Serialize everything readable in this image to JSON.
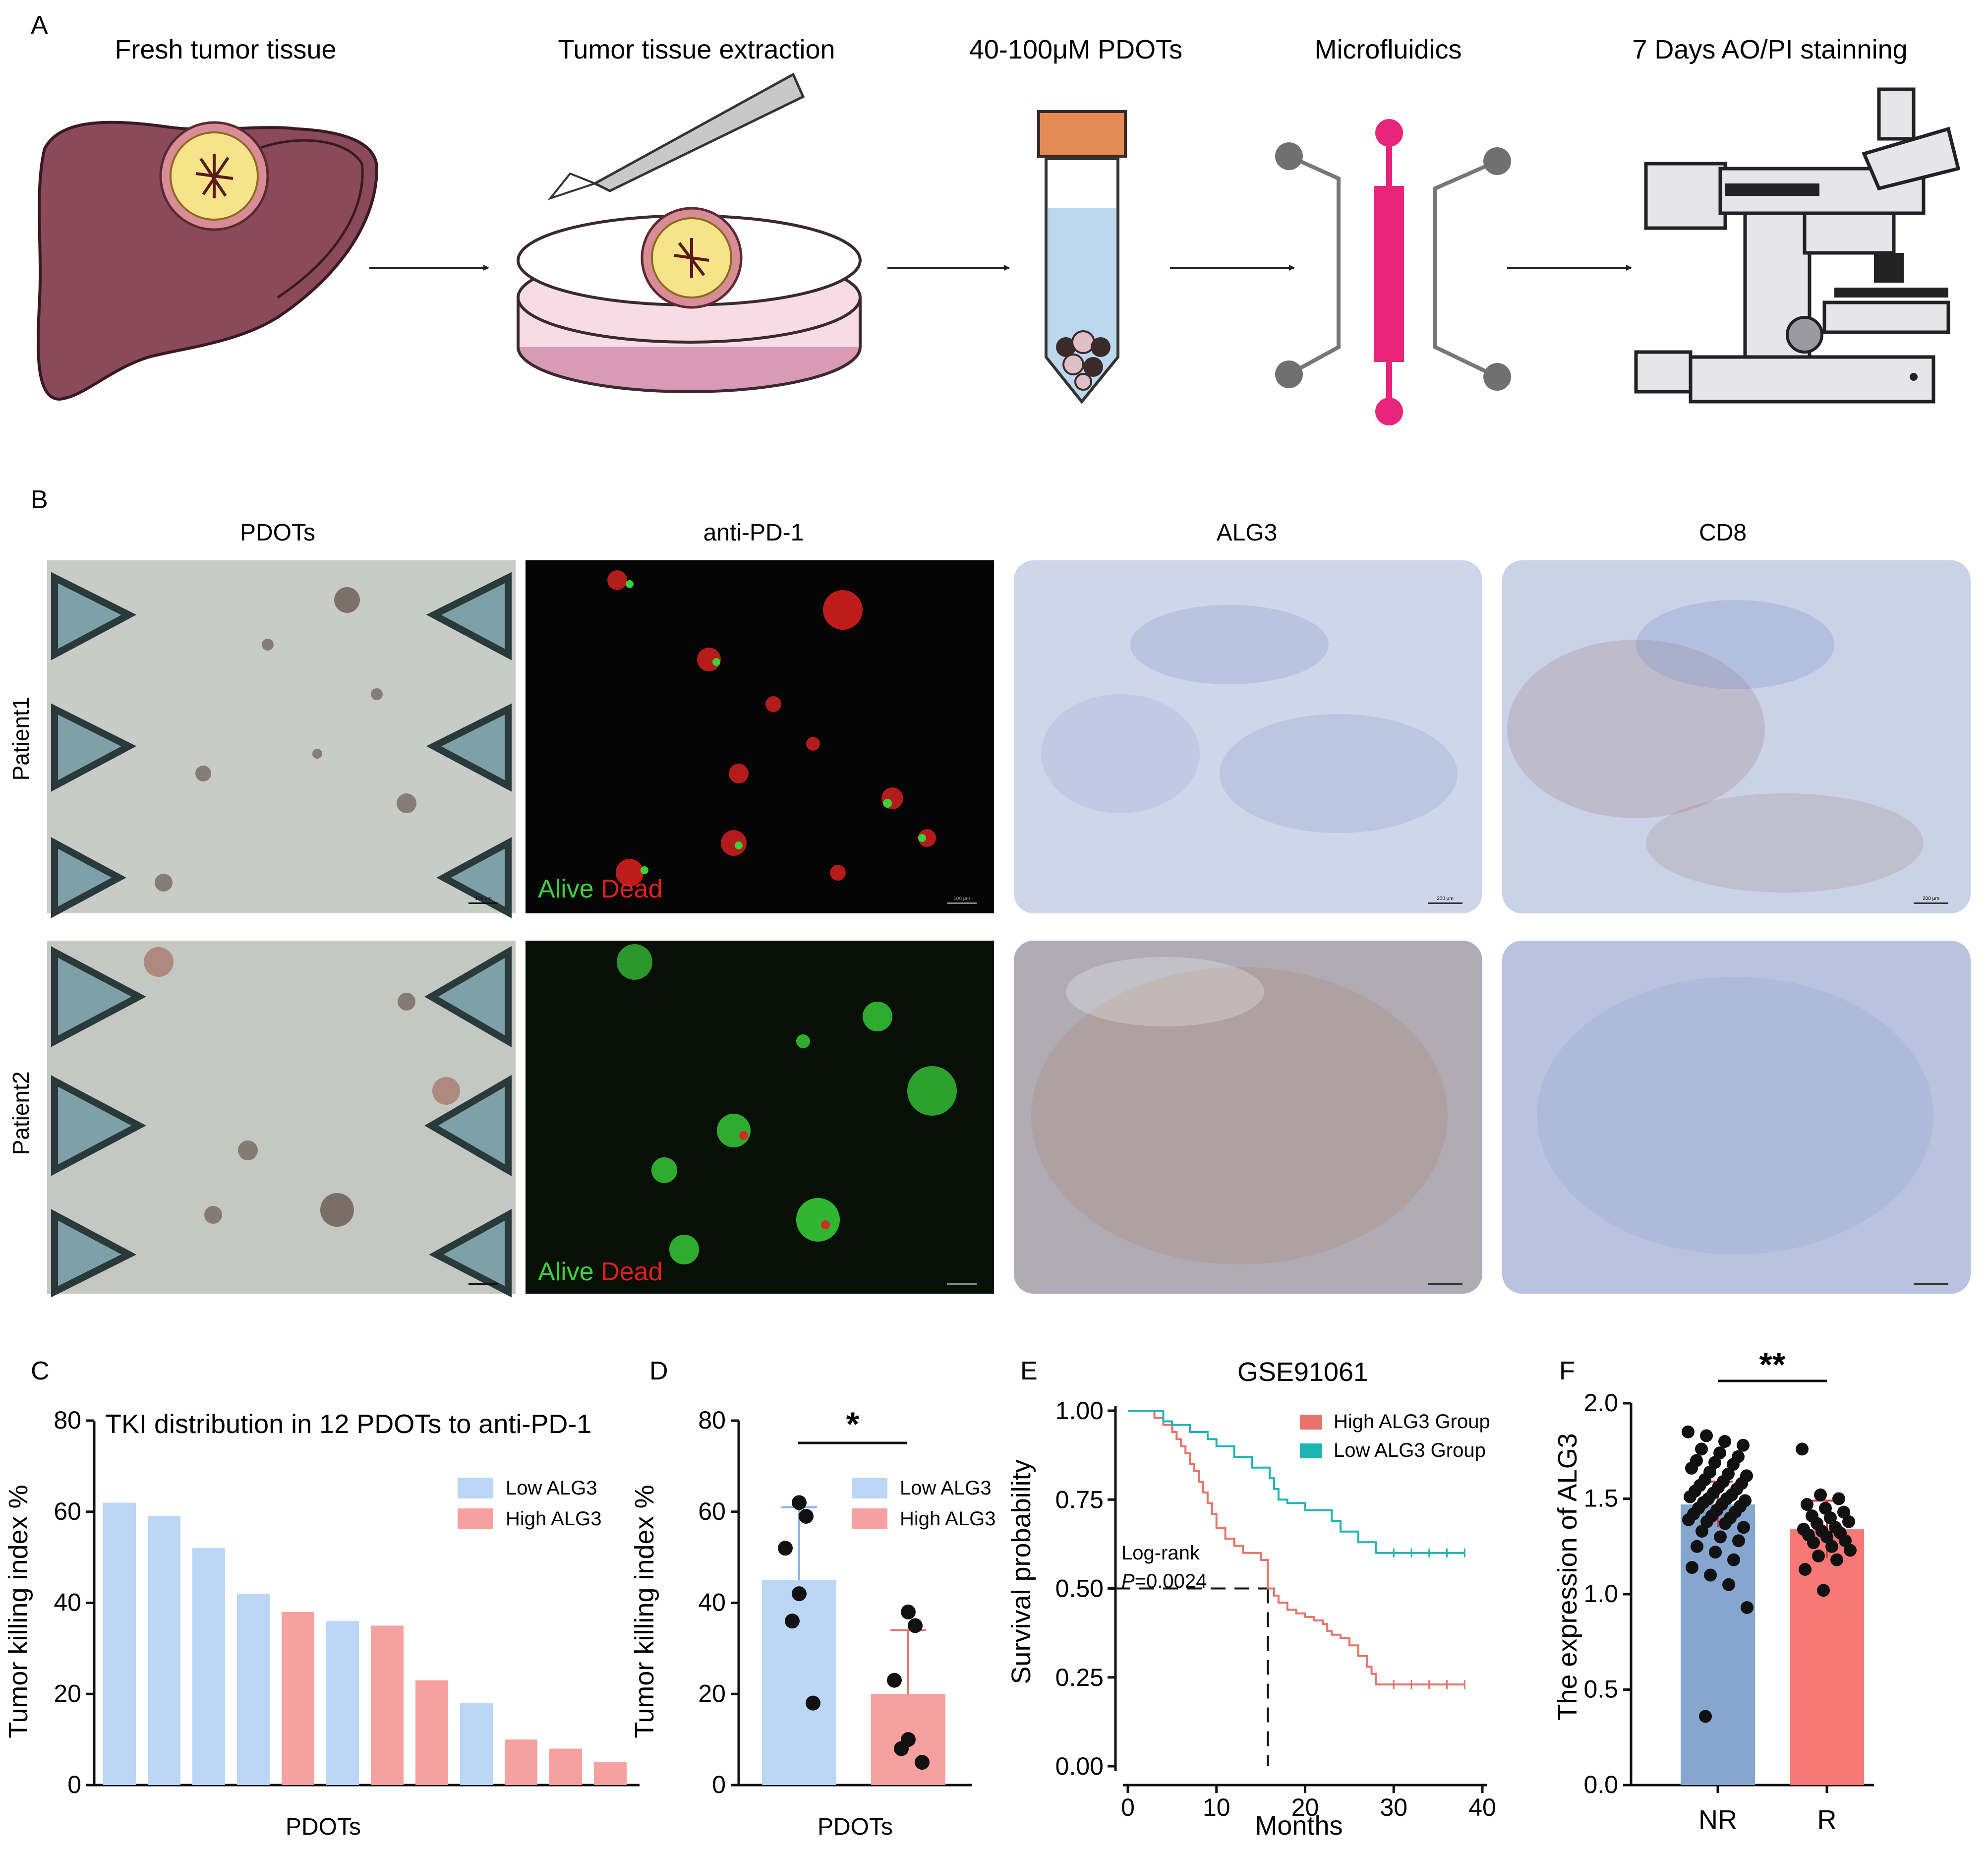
{
  "panel_letters": {
    "a": "A",
    "b": "B",
    "c": "C",
    "d": "D",
    "e": "E",
    "f": "F"
  },
  "workflow": {
    "steps": [
      "Fresh tumor tissue",
      "Tumor tissue extraction",
      "40-100μM PDOTs",
      "Microfluidics",
      "7 Days AO/PI stainning"
    ]
  },
  "micrographs": {
    "columns": [
      "PDOTs",
      "anti-PD-1",
      "ALG3",
      "CD8"
    ],
    "rows": [
      "Patient1",
      "Patient2"
    ],
    "alive_label": "Alive",
    "dead_label": "Dead",
    "scale_bars": [
      "100 μm",
      "100 μm",
      "200 μm",
      "200 μm"
    ],
    "colors": {
      "alive": "#3ad33a",
      "dead": "#e02020",
      "ihc_blue": "#6f86c4",
      "ihc_brown": "#7a3a1a"
    }
  },
  "chart_data": [
    {
      "id": "C",
      "type": "bar",
      "title": "TKI distribution in 12 PDOTs to anti-PD-1",
      "xlabel": "PDOTs",
      "ylabel": "Tumor killing index %",
      "ylim": [
        0,
        80
      ],
      "yticks": [
        "0",
        "20",
        "40",
        "60",
        "80"
      ],
      "values": [
        62,
        59,
        52,
        42,
        38,
        36,
        35,
        23,
        18,
        10,
        8,
        5
      ],
      "groups": [
        "Low",
        "Low",
        "Low",
        "Low",
        "High",
        "Low",
        "High",
        "High",
        "Low",
        "High",
        "High",
        "High"
      ],
      "legend": [
        {
          "label": "Low  ALG3",
          "color": "#bcd6f5"
        },
        {
          "label": "High ALG3",
          "color": "#f7a0a0"
        }
      ],
      "legend_position": "top-right"
    },
    {
      "id": "D",
      "type": "bar",
      "xlabel": "PDOTs",
      "ylabel": "Tumor killing index %",
      "ylim": [
        0,
        80
      ],
      "yticks": [
        "0",
        "20",
        "40",
        "60",
        "80"
      ],
      "significance": "*",
      "series": [
        {
          "name": "Low  ALG3",
          "mean": 45,
          "sd": 16,
          "points": [
            62,
            59,
            52,
            42,
            36,
            18
          ],
          "color": "#bcd6f5"
        },
        {
          "name": "High ALG3",
          "mean": 20,
          "sd": 14,
          "points": [
            38,
            35,
            23,
            10,
            8,
            5
          ],
          "color": "#f7a0a0"
        }
      ],
      "legend_position": "top-right"
    },
    {
      "id": "E",
      "type": "line",
      "title": "GSE91061",
      "xlabel": "Months",
      "ylabel": "Survival probability",
      "xlim": [
        0,
        40
      ],
      "ylim": [
        0,
        1
      ],
      "xticks": [
        "0",
        "10",
        "20",
        "30",
        "40"
      ],
      "yticks": [
        "0.00",
        "0.25",
        "0.50",
        "0.75",
        "1.00"
      ],
      "annotation_1": "Log-rank",
      "annotation_p": "P",
      "annotation_pval": "=0.0024",
      "median_survival_high": 15.8,
      "series": [
        {
          "name": "High ALG3 Group",
          "color": "#e8736a",
          "x": [
            0,
            2,
            3,
            4,
            5,
            5.5,
            6,
            6.5,
            7,
            7.5,
            8,
            8.5,
            9,
            9.5,
            10,
            11,
            12,
            13,
            14,
            15,
            15.8,
            16.5,
            17,
            18,
            19,
            20,
            21,
            22,
            22.5,
            23,
            24,
            25,
            26,
            27,
            27.5,
            28,
            30,
            32,
            34,
            36,
            38
          ],
          "y": [
            1.0,
            1.0,
            0.98,
            0.96,
            0.94,
            0.92,
            0.9,
            0.88,
            0.85,
            0.83,
            0.8,
            0.77,
            0.74,
            0.71,
            0.67,
            0.64,
            0.62,
            0.6,
            0.6,
            0.58,
            0.5,
            0.48,
            0.46,
            0.44,
            0.43,
            0.42,
            0.41,
            0.4,
            0.38,
            0.37,
            0.36,
            0.34,
            0.31,
            0.28,
            0.26,
            0.23,
            0.23,
            0.23,
            0.23,
            0.23,
            0.23
          ]
        },
        {
          "name": "Low ALG3 Group",
          "color": "#1fb5b5",
          "x": [
            0,
            3,
            4,
            5,
            6,
            7,
            8,
            9,
            10,
            12,
            14,
            16,
            16.5,
            17,
            18,
            20,
            22,
            23,
            24,
            26,
            28,
            30,
            32,
            34,
            36,
            38
          ],
          "y": [
            1.0,
            1.0,
            0.97,
            0.96,
            0.96,
            0.94,
            0.94,
            0.92,
            0.9,
            0.87,
            0.84,
            0.81,
            0.78,
            0.75,
            0.74,
            0.72,
            0.72,
            0.69,
            0.66,
            0.63,
            0.6,
            0.6,
            0.6,
            0.6,
            0.6,
            0.6
          ]
        }
      ],
      "legend_position": "top-right"
    },
    {
      "id": "F",
      "type": "bar",
      "xlabel": "",
      "ylabel": "The expression of ALG3",
      "categories": [
        "NR",
        "R"
      ],
      "ylim": [
        0,
        2.0
      ],
      "yticks": [
        "0.0",
        "0.5",
        "1.0",
        "1.5",
        "2.0"
      ],
      "significance": "**",
      "series": [
        {
          "name": "NR",
          "mean": 1.47,
          "sd": 0.12,
          "color": "#86a6cf",
          "points": [
            1.85,
            1.83,
            1.8,
            1.78,
            1.76,
            1.74,
            1.72,
            1.7,
            1.69,
            1.68,
            1.66,
            1.64,
            1.63,
            1.62,
            1.6,
            1.59,
            1.58,
            1.57,
            1.56,
            1.55,
            1.54,
            1.53,
            1.52,
            1.51,
            1.5,
            1.5,
            1.49,
            1.48,
            1.47,
            1.46,
            1.45,
            1.44,
            1.43,
            1.42,
            1.41,
            1.4,
            1.39,
            1.38,
            1.37,
            1.35,
            1.33,
            1.3,
            1.28,
            1.25,
            1.22,
            1.18,
            1.14,
            1.1,
            1.05,
            0.93,
            0.36
          ]
        },
        {
          "name": "R",
          "mean": 1.34,
          "sd": 0.15,
          "color": "#f87878",
          "points": [
            1.76,
            1.52,
            1.5,
            1.47,
            1.45,
            1.43,
            1.41,
            1.4,
            1.38,
            1.37,
            1.35,
            1.34,
            1.33,
            1.32,
            1.31,
            1.3,
            1.28,
            1.27,
            1.25,
            1.23,
            1.2,
            1.18,
            1.13,
            1.02
          ]
        }
      ]
    }
  ]
}
